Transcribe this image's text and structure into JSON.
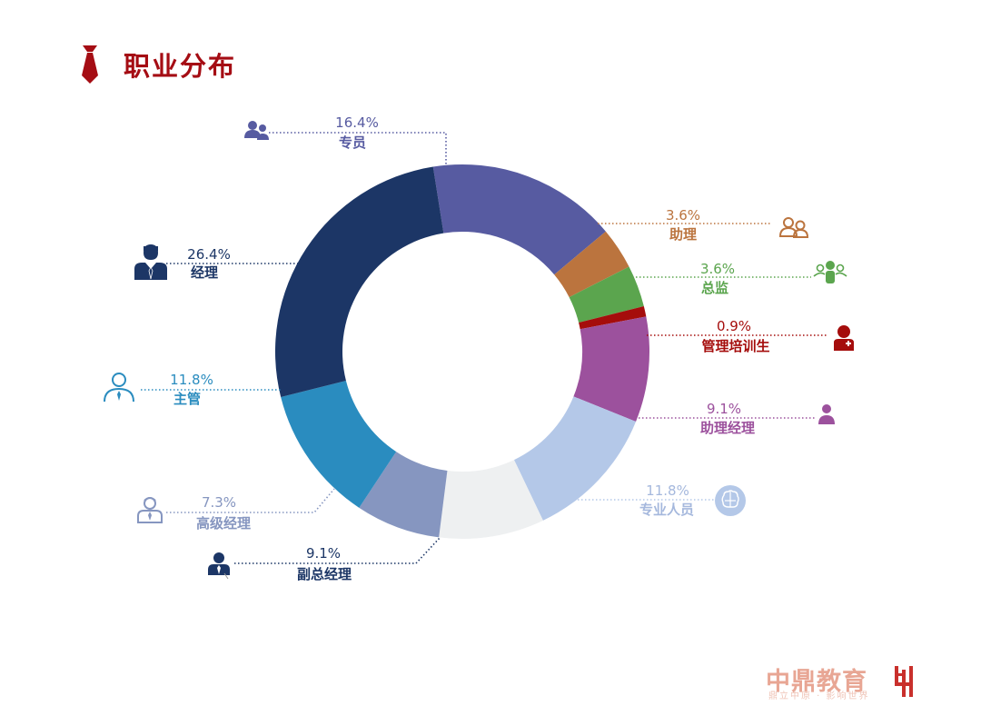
{
  "page": {
    "title": "职业分布",
    "brand_name": "中鼎教育",
    "brand_slogan": "鼎立中原 · 影响世界",
    "tie_icon_color": "#a50d14"
  },
  "chart_data": {
    "type": "pie",
    "donut": true,
    "title": "职业分布",
    "slices": [
      {
        "label": "专员",
        "value": 16.4,
        "value_text": "16.4%",
        "color": "#575ba1",
        "icon": "group-icon"
      },
      {
        "label": "助理",
        "value": 3.6,
        "value_text": "3.6%",
        "color": "#bb743e",
        "icon": "two-people-outline-icon"
      },
      {
        "label": "总监",
        "value": 3.6,
        "value_text": "3.6%",
        "color": "#5ba54e",
        "icon": "team-icon"
      },
      {
        "label": "管理培训生",
        "value": 0.9,
        "value_text": "0.9%",
        "color": "#a50d0c",
        "icon": "nurse-icon"
      },
      {
        "label": "助理经理",
        "value": 9.1,
        "value_text": "9.1%",
        "color": "#9c519d",
        "icon": "person-icon"
      },
      {
        "label": "专业人员",
        "value": 11.8,
        "value_text": "11.8%",
        "color": "#b4c8e8",
        "icon": "brain-badge-icon"
      },
      {
        "label": "副总经理",
        "value": 9.1,
        "value_text": "9.1%",
        "color": "#eef0f1",
        "icon": "businessman-icon"
      },
      {
        "label": "高级经理",
        "value": 7.3,
        "value_text": "7.3%",
        "color": "#8696c0",
        "icon": "manager-outline-icon"
      },
      {
        "label": "主管",
        "value": 11.8,
        "value_text": "11.8%",
        "color": "#2a8cbf",
        "icon": "supervisor-outline-icon"
      },
      {
        "label": "经理",
        "value": 26.4,
        "value_text": "26.4%",
        "color": "#1c3666",
        "icon": "manager-icon"
      }
    ]
  }
}
